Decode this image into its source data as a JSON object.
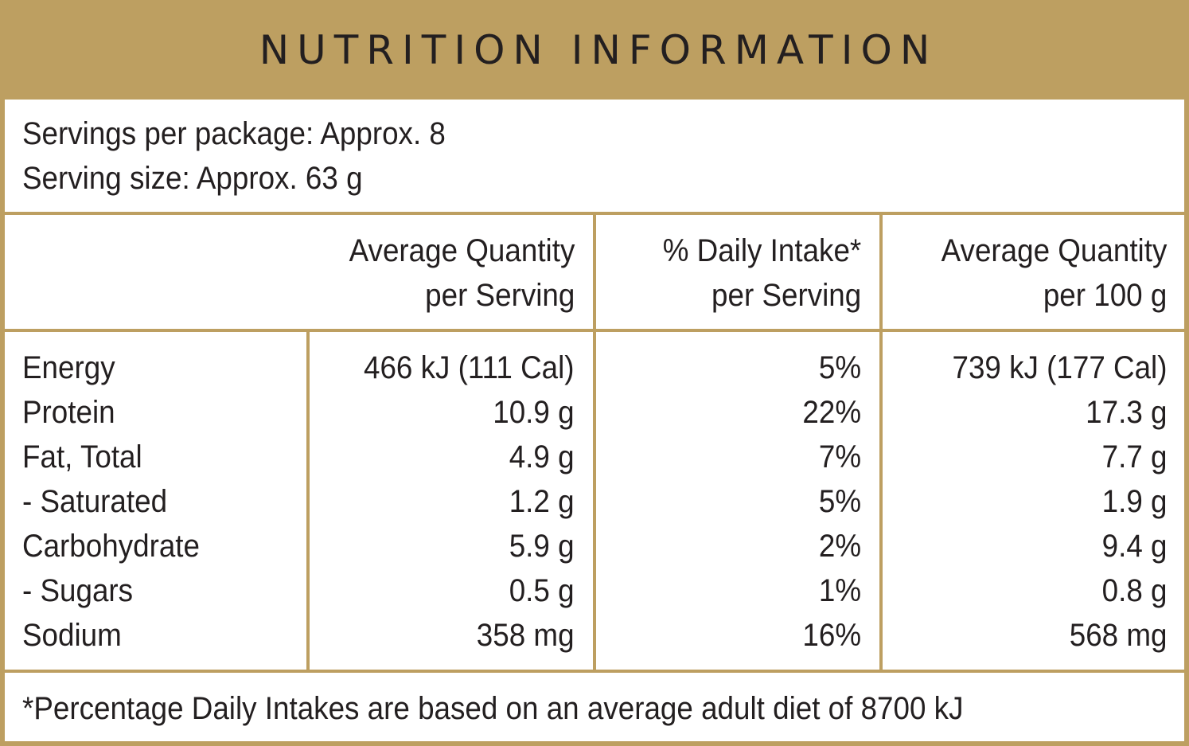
{
  "title": "NUTRITION INFORMATION",
  "servings": {
    "per_package": "Servings per package: Approx. 8",
    "serving_size": "Serving size: Approx. 63 g"
  },
  "headers": {
    "per_serving": [
      "Average Quantity",
      "per Serving"
    ],
    "daily_intake": [
      "% Daily Intake*",
      "per Serving"
    ],
    "per_100g": [
      "Average Quantity",
      "per 100 g"
    ]
  },
  "rows": [
    {
      "nutrient": "Energy",
      "per_serving": "466 kJ (111 Cal)",
      "daily_intake": "5%",
      "per_100g": "739 kJ (177 Cal)"
    },
    {
      "nutrient": "Protein",
      "per_serving": "10.9 g",
      "daily_intake": "22%",
      "per_100g": "17.3 g"
    },
    {
      "nutrient": "Fat, Total",
      "per_serving": "4.9 g",
      "daily_intake": "7%",
      "per_100g": "7.7 g"
    },
    {
      "nutrient": "- Saturated",
      "per_serving": "1.2 g",
      "daily_intake": "5%",
      "per_100g": "1.9 g"
    },
    {
      "nutrient": "Carbohydrate",
      "per_serving": "5.9 g",
      "daily_intake": "2%",
      "per_100g": "9.4 g"
    },
    {
      "nutrient": "- Sugars",
      "per_serving": "0.5 g",
      "daily_intake": "1%",
      "per_100g": "0.8 g"
    },
    {
      "nutrient": "Sodium",
      "per_serving": "358 mg",
      "daily_intake": "16%",
      "per_100g": "568 mg"
    }
  ],
  "footnote": "*Percentage Daily Intakes are based on an average adult diet of 8700 kJ",
  "colors": {
    "accent": "#bd9f61",
    "text": "#231f20",
    "background": "#ffffff"
  }
}
